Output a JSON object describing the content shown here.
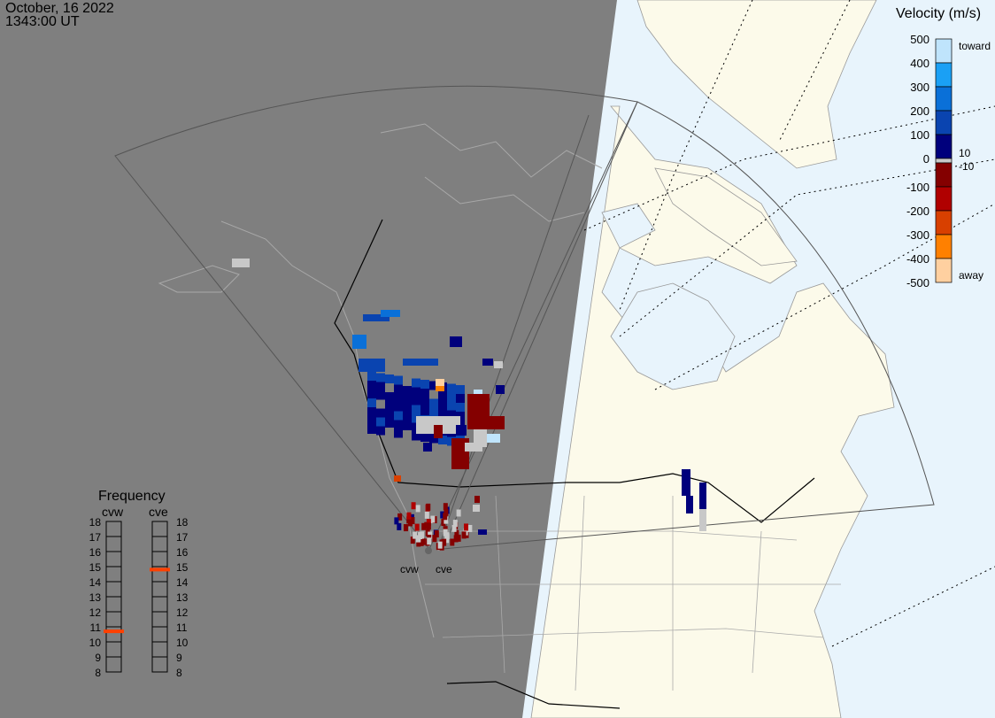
{
  "header": {
    "date": "October, 16 2022",
    "time": "1343:00 UT"
  },
  "velocity_scale": {
    "title": "Velocity (m/s)",
    "ticks": [
      "500",
      "400",
      "300",
      "200",
      "100",
      "0",
      "-100",
      "-200",
      "-300",
      "-400",
      "-500"
    ],
    "toward_label": "toward",
    "away_label": "away",
    "pos_threshold": "10",
    "neg_threshold": "-10",
    "colors": [
      "#bfe4fc",
      "#1aa0f5",
      "#0a70d8",
      "#0a44b0",
      "#00007c",
      "#c8c8c8",
      "#840000",
      "#b00000",
      "#d84000",
      "#ff8000",
      "#ffd0a0"
    ]
  },
  "frequency_panel": {
    "title": "Frequency",
    "radars": [
      {
        "name": "cvw",
        "frequency_mhz": 10.7
      },
      {
        "name": "cve",
        "frequency_mhz": 14.8
      }
    ],
    "ticks": [
      "18",
      "17",
      "16",
      "15",
      "14",
      "13",
      "12",
      "11",
      "10",
      "9",
      "8"
    ],
    "marker_color": "#ff4000"
  },
  "map": {
    "radar_labels": [
      "cvw",
      "cve"
    ],
    "night_color": "#7f7f7f",
    "land_color": "#fcfaea",
    "ocean_color": "#e8f4fc"
  }
}
